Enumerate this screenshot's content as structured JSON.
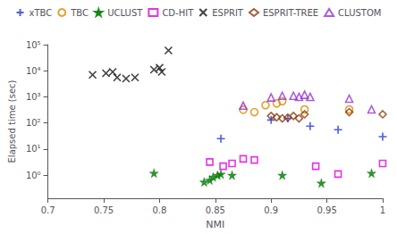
{
  "chart_data": {
    "type": "scatter",
    "xlabel": "NMI",
    "ylabel": "Elapsed time (sec)",
    "log": "y",
    "grid": false,
    "legend": "top",
    "xlim": [
      0.7,
      1.0
    ],
    "xticks": [
      0.7,
      0.75,
      0.8,
      0.85,
      0.9,
      0.95,
      1
    ],
    "ylim": [
      0.13,
      100000
    ],
    "yticks": [
      {
        "value": 1,
        "label": "10⁰"
      },
      {
        "value": 10,
        "label": "10¹"
      },
      {
        "value": 100,
        "label": "10²"
      },
      {
        "value": 1000,
        "label": "10³"
      },
      {
        "value": 10000,
        "label": "10⁴"
      },
      {
        "value": 100000,
        "label": "10⁵"
      }
    ],
    "series": [
      {
        "name": "xTBC",
        "color": "#2233dd",
        "marker": "plus",
        "x": [
          0.855,
          0.9,
          0.915,
          0.935,
          0.96,
          1.0
        ],
        "values": [
          25,
          130,
          150,
          75,
          55,
          30
        ]
      },
      {
        "name": "TBC",
        "color": "#dd8800",
        "marker": "circle",
        "x": [
          0.875,
          0.885,
          0.895,
          0.905,
          0.91,
          0.93,
          0.97
        ],
        "values": [
          320,
          260,
          480,
          560,
          680,
          330,
          330
        ]
      },
      {
        "name": "UCLUST",
        "color": "#007700",
        "marker": "star",
        "x": [
          0.795,
          0.84,
          0.845,
          0.848,
          0.852,
          0.855,
          0.865,
          0.91,
          0.945,
          0.99
        ],
        "values": [
          1.2,
          0.55,
          0.65,
          0.85,
          1.0,
          1.1,
          1.0,
          1.0,
          0.5,
          1.2
        ]
      },
      {
        "name": "CD-HIT",
        "color": "#dd00dd",
        "marker": "square",
        "x": [
          0.845,
          0.857,
          0.865,
          0.875,
          0.885,
          0.94,
          0.96,
          1.0
        ],
        "values": [
          3.2,
          2.2,
          2.8,
          4.2,
          3.8,
          2.2,
          1.1,
          2.8
        ]
      },
      {
        "name": "ESPRIT",
        "color": "#111111",
        "marker": "x",
        "x": [
          0.74,
          0.752,
          0.758,
          0.762,
          0.77,
          0.778,
          0.795,
          0.8,
          0.802,
          0.808
        ],
        "values": [
          7000,
          8000,
          9000,
          5500,
          5000,
          5500,
          11000,
          13000,
          9000,
          60000
        ]
      },
      {
        "name": "ESPRIT-TREE",
        "color": "#8B3A0A",
        "marker": "diamond",
        "x": [
          0.9,
          0.905,
          0.91,
          0.915,
          0.92,
          0.925,
          0.93,
          0.97,
          1.0
        ],
        "values": [
          185,
          165,
          150,
          160,
          185,
          150,
          215,
          260,
          215
        ]
      },
      {
        "name": "CLUSTOM",
        "color": "#9933cc",
        "marker": "triangle",
        "x": [
          0.875,
          0.9,
          0.91,
          0.92,
          0.925,
          0.93,
          0.935,
          0.97,
          0.99
        ],
        "values": [
          460,
          950,
          1100,
          1100,
          1000,
          1200,
          1000,
          850,
          330
        ]
      }
    ]
  }
}
